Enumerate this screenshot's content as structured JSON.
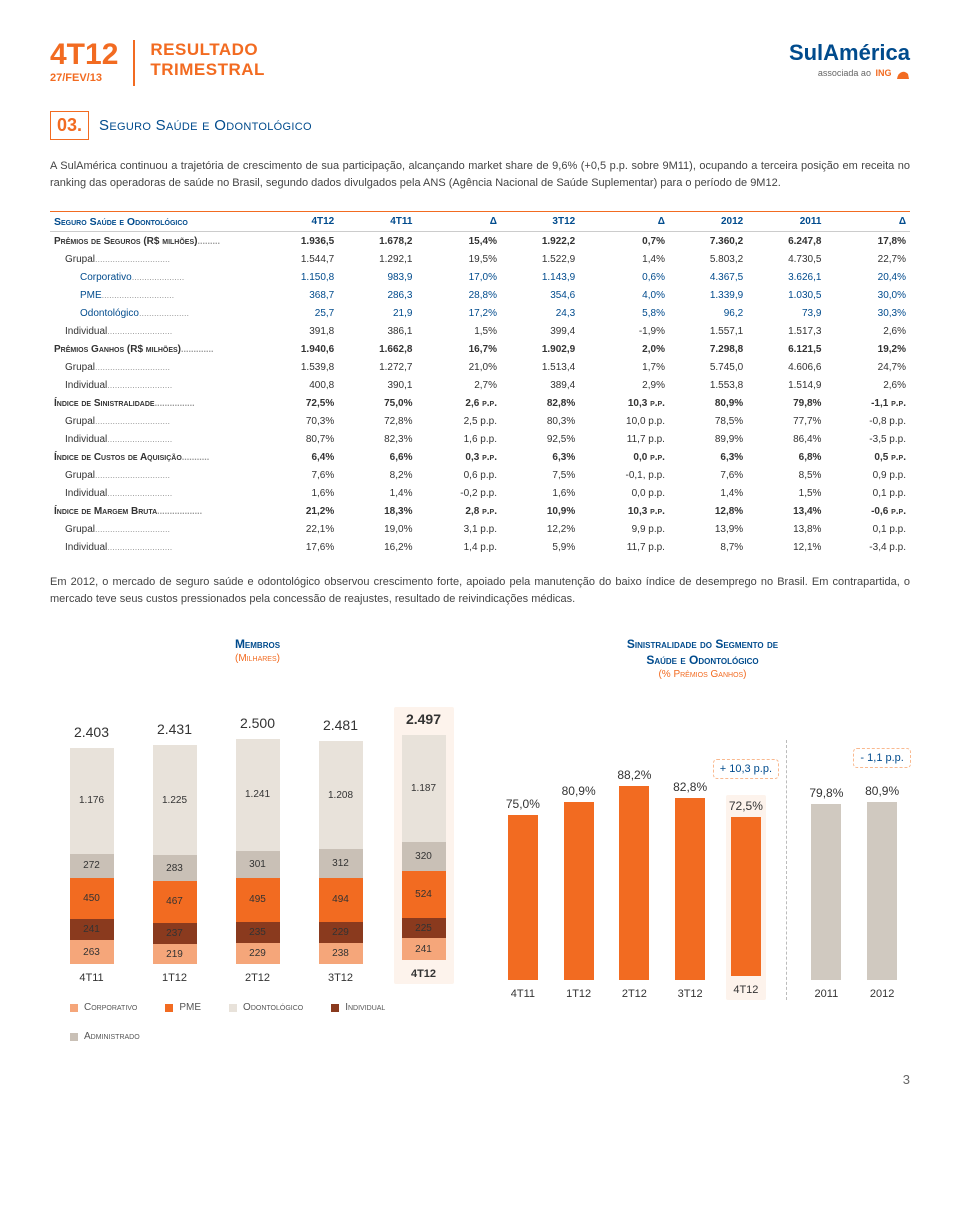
{
  "header": {
    "period": "4T12",
    "date": "27/FEV/13",
    "result1": "RESULTADO",
    "result2": "TRIMESTRAL",
    "logo_main": "SulAmérica",
    "logo_assoc": "associada ao",
    "logo_ing": "ING"
  },
  "section": {
    "num": "03.",
    "title": "Seguro Saúde e Odontológico"
  },
  "intro": "A SulAmérica continuou a trajetória de crescimento de sua participação, alcançando market share de 9,6% (+0,5 p.p. sobre 9M11), ocupando a terceira posição em receita no ranking das operadoras de saúde no Brasil, segundo dados divulgados pela ANS (Agência Nacional de Saúde Suplementar) para o período de 9M12.",
  "table": {
    "head": [
      "Seguro Saúde e Odontológico",
      "4T12",
      "4T11",
      "Δ",
      "3T12",
      "Δ",
      "2012",
      "2011",
      "Δ"
    ],
    "rows": [
      {
        "b": true,
        "lbl": "Prêmios de Seguros (R$ milhões)",
        "c": [
          "1.936,5",
          "1.678,2",
          "15,4%",
          "1.922,2",
          "0,7%",
          "7.360,2",
          "6.247,8",
          "17,8%"
        ]
      },
      {
        "lbl": "Grupal",
        "i": 1,
        "c": [
          "1.544,7",
          "1.292,1",
          "19,5%",
          "1.522,9",
          "1,4%",
          "5.803,2",
          "4.730,5",
          "22,7%"
        ]
      },
      {
        "lbl": "Corporativo",
        "i": 2,
        "blue": true,
        "c": [
          "1.150,8",
          "983,9",
          "17,0%",
          "1.143,9",
          "0,6%",
          "4.367,5",
          "3.626,1",
          "20,4%"
        ]
      },
      {
        "lbl": "PME",
        "i": 2,
        "blue": true,
        "c": [
          "368,7",
          "286,3",
          "28,8%",
          "354,6",
          "4,0%",
          "1.339,9",
          "1.030,5",
          "30,0%"
        ]
      },
      {
        "lbl": "Odontológico",
        "i": 2,
        "blue": true,
        "c": [
          "25,7",
          "21,9",
          "17,2%",
          "24,3",
          "5,8%",
          "96,2",
          "73,9",
          "30,3%"
        ]
      },
      {
        "lbl": "Individual",
        "i": 1,
        "c": [
          "391,8",
          "386,1",
          "1,5%",
          "399,4",
          "-1,9%",
          "1.557,1",
          "1.517,3",
          "2,6%"
        ]
      },
      {
        "b": true,
        "lbl": "Prêmios Ganhos (R$ milhões)",
        "c": [
          "1.940,6",
          "1.662,8",
          "16,7%",
          "1.902,9",
          "2,0%",
          "7.298,8",
          "6.121,5",
          "19,2%"
        ]
      },
      {
        "lbl": "Grupal",
        "i": 1,
        "c": [
          "1.539,8",
          "1.272,7",
          "21,0%",
          "1.513,4",
          "1,7%",
          "5.745,0",
          "4.606,6",
          "24,7%"
        ]
      },
      {
        "lbl": "Individual",
        "i": 1,
        "c": [
          "400,8",
          "390,1",
          "2,7%",
          "389,4",
          "2,9%",
          "1.553,8",
          "1.514,9",
          "2,6%"
        ]
      },
      {
        "b": true,
        "lbl": "Índice de Sinistralidade",
        "c": [
          "72,5%",
          "75,0%",
          "2,6 p.p.",
          "82,8%",
          "10,3 p.p.",
          "80,9%",
          "79,8%",
          "-1,1 p.p."
        ]
      },
      {
        "lbl": "Grupal",
        "i": 1,
        "c": [
          "70,3%",
          "72,8%",
          "2,5 p.p.",
          "80,3%",
          "10,0 p.p.",
          "78,5%",
          "77,7%",
          "-0,8 p.p."
        ]
      },
      {
        "lbl": "Individual",
        "i": 1,
        "c": [
          "80,7%",
          "82,3%",
          "1,6 p.p.",
          "92,5%",
          "11,7 p.p.",
          "89,9%",
          "86,4%",
          "-3,5 p.p."
        ]
      },
      {
        "b": true,
        "lbl": "Índice de Custos de Aquisição",
        "c": [
          "6,4%",
          "6,6%",
          "0,3 p.p.",
          "6,3%",
          "0,0 p.p.",
          "6,3%",
          "6,8%",
          "0,5 p.p."
        ]
      },
      {
        "lbl": "Grupal",
        "i": 1,
        "c": [
          "7,6%",
          "8,2%",
          "0,6 p.p.",
          "7,5%",
          "-0,1, p.p.",
          "7,6%",
          "8,5%",
          "0,9 p.p."
        ]
      },
      {
        "lbl": "Individual",
        "i": 1,
        "c": [
          "1,6%",
          "1,4%",
          "-0,2 p.p.",
          "1,6%",
          "0,0 p.p.",
          "1,4%",
          "1,5%",
          "0,1 p.p."
        ]
      },
      {
        "b": true,
        "lbl": "Índice de Margem Bruta",
        "c": [
          "21,2%",
          "18,3%",
          "2,8 p.p.",
          "10,9%",
          "10,3 p.p.",
          "12,8%",
          "13,4%",
          "-0,6 p.p."
        ]
      },
      {
        "lbl": "Grupal",
        "i": 1,
        "c": [
          "22,1%",
          "19,0%",
          "3,1 p.p.",
          "12,2%",
          "9,9 p.p.",
          "13,9%",
          "13,8%",
          "0,1 p.p."
        ]
      },
      {
        "lbl": "Individual",
        "i": 1,
        "c": [
          "17,6%",
          "16,2%",
          "1,4 p.p.",
          "5,9%",
          "11,7 p.p.",
          "8,7%",
          "12,1%",
          "-3,4 p.p."
        ]
      }
    ]
  },
  "outro": "Em 2012, o mercado de seguro saúde e odontológico observou crescimento forte, apoiado pela manutenção do baixo índice de desemprego no Brasil. Em contrapartida, o mercado teve seus custos pressionados pela concessão de reajustes, resultado de reivindicações médicas.",
  "members": {
    "title": "Membros",
    "subtitle": "(Milhares)",
    "colors": {
      "corp": "#f5a67a",
      "ind": "#8a3a1e",
      "pme": "#f26b21",
      "admin": "#c9c0b6",
      "odont": "#e8e2da"
    },
    "scale": 0.09,
    "cols": [
      {
        "x": "4T11",
        "total": "2.403",
        "seg": [
          {
            "v": 1176,
            "l": "1.176",
            "k": "odont"
          },
          {
            "v": 272,
            "l": "272",
            "k": "admin"
          },
          {
            "v": 450,
            "l": "450",
            "k": "pme"
          },
          {
            "v": 241,
            "l": "241",
            "k": "ind"
          },
          {
            "v": 263,
            "l": "263",
            "k": "corp"
          }
        ]
      },
      {
        "x": "1T12",
        "total": "2.431",
        "seg": [
          {
            "v": 1225,
            "l": "1.225",
            "k": "odont"
          },
          {
            "v": 283,
            "l": "283",
            "k": "admin"
          },
          {
            "v": 467,
            "l": "467",
            "k": "pme"
          },
          {
            "v": 237,
            "l": "237",
            "k": "ind"
          },
          {
            "v": 219,
            "l": "219",
            "k": "corp"
          }
        ]
      },
      {
        "x": "2T12",
        "total": "2.500",
        "seg": [
          {
            "v": 1241,
            "l": "1.241",
            "k": "odont"
          },
          {
            "v": 301,
            "l": "301",
            "k": "admin"
          },
          {
            "v": 495,
            "l": "495",
            "k": "pme"
          },
          {
            "v": 235,
            "l": "235",
            "k": "ind"
          },
          {
            "v": 229,
            "l": "229",
            "k": "corp"
          }
        ]
      },
      {
        "x": "3T12",
        "total": "2.481",
        "seg": [
          {
            "v": 1208,
            "l": "1.208",
            "k": "odont"
          },
          {
            "v": 312,
            "l": "312",
            "k": "admin"
          },
          {
            "v": 494,
            "l": "494",
            "k": "pme"
          },
          {
            "v": 229,
            "l": "229",
            "k": "ind"
          },
          {
            "v": 238,
            "l": "238",
            "k": "corp"
          }
        ]
      },
      {
        "x": "4T12",
        "total": "2.497",
        "hl": true,
        "seg": [
          {
            "v": 1187,
            "l": "1.187",
            "k": "odont"
          },
          {
            "v": 320,
            "l": "320",
            "k": "admin"
          },
          {
            "v": 524,
            "l": "524",
            "k": "pme"
          },
          {
            "v": 225,
            "l": "225",
            "k": "ind"
          },
          {
            "v": 241,
            "l": "241",
            "k": "corp"
          }
        ]
      }
    ],
    "legend": [
      {
        "k": "corp",
        "l": "Corporativo"
      },
      {
        "k": "pme",
        "l": "PME"
      },
      {
        "k": "odont",
        "l": "Odontológico"
      },
      {
        "k": "ind",
        "l": "Individual"
      },
      {
        "k": "admin",
        "l": "Administrado"
      }
    ]
  },
  "loss": {
    "title_l1": "Sinistralidade do Segmento de",
    "title_l2": "Saúde e Odontológico",
    "subtitle": "(% Prêmios Ganhos)",
    "scale": 2.2,
    "badge1": "+ 10,3 p.p.",
    "badge2": "- 1,1 p.p.",
    "cols": [
      {
        "x": "4T11",
        "v": 75.0,
        "l": "75,0%"
      },
      {
        "x": "1T12",
        "v": 80.9,
        "l": "80,9%"
      },
      {
        "x": "2T12",
        "v": 88.2,
        "l": "88,2%"
      },
      {
        "x": "3T12",
        "v": 82.8,
        "l": "82,8%"
      },
      {
        "x": "4T12",
        "v": 72.5,
        "l": "72,5%",
        "hl": true,
        "badge": "badge1"
      },
      {
        "sep": true
      },
      {
        "x": "2011",
        "v": 79.8,
        "l": "79,8%",
        "gray": true
      },
      {
        "x": "2012",
        "v": 80.9,
        "l": "80,9%",
        "gray": true,
        "badge": "badge2"
      }
    ]
  },
  "page": "3"
}
